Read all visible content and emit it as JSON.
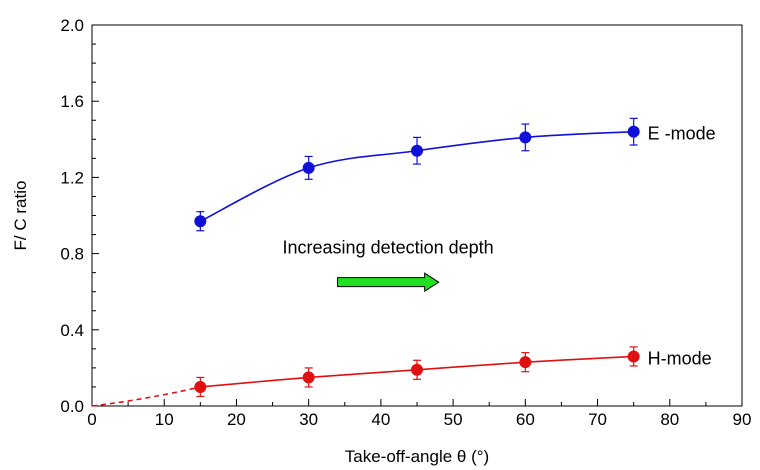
{
  "chart_data": {
    "type": "scatter",
    "title": "",
    "xlabel": "Take-off-angle θ (°)",
    "ylabel": "F/ C ratio",
    "xlim": [
      0,
      90
    ],
    "ylim": [
      0,
      2.0
    ],
    "x_ticks": [
      0,
      10,
      20,
      30,
      40,
      50,
      60,
      70,
      80,
      90
    ],
    "x_tick_labels": [
      "0",
      "10",
      "20",
      "30",
      "40",
      "50",
      "60",
      "70",
      "80",
      "90"
    ],
    "y_ticks": [
      0,
      0.4,
      0.8,
      1.2,
      1.6,
      2.0
    ],
    "y_tick_labels": [
      "0.0",
      "0.4",
      "0.8",
      "1.2",
      "1.6",
      "2.0"
    ],
    "grid": false,
    "legend": "none",
    "series": [
      {
        "name": "E -mode",
        "color": "#1010d8",
        "x": [
          15,
          30,
          45,
          60,
          75
        ],
        "y": [
          0.97,
          1.25,
          1.34,
          1.41,
          1.44
        ],
        "error": [
          0.05,
          0.06,
          0.07,
          0.07,
          0.07
        ],
        "fit_extends_to_origin": false
      },
      {
        "name": "H-mode",
        "color": "#e01010",
        "x": [
          15,
          30,
          45,
          60,
          75
        ],
        "y": [
          0.1,
          0.15,
          0.19,
          0.23,
          0.26
        ],
        "error": [
          0.05,
          0.05,
          0.05,
          0.05,
          0.05
        ],
        "fit_extends_to_origin": true
      }
    ],
    "annotations": {
      "depth_text": "Increasing detection depth",
      "arrow_color": "#22e022",
      "arrow_from_x": 34,
      "arrow_to_x": 48,
      "arrow_y": 0.65
    }
  }
}
